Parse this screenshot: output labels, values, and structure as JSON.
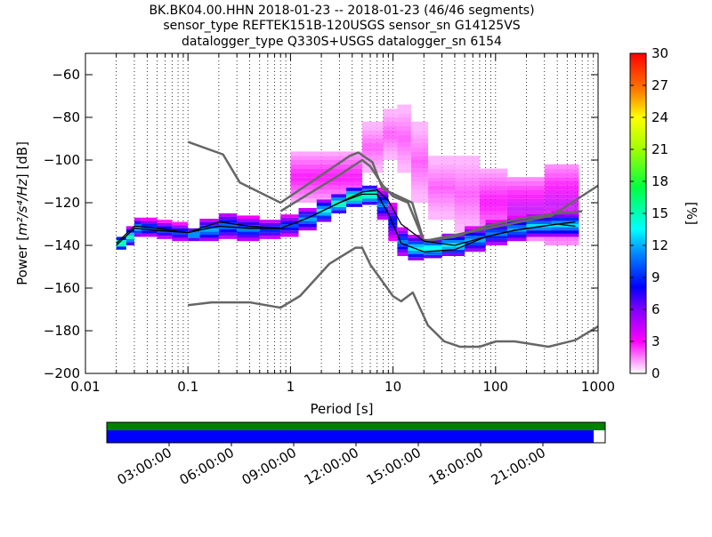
{
  "chart_data": {
    "type": "heatmap",
    "title_lines": [
      "BK.BK04.00.HHN   2018-01-23 -- 2018-01-23  (46/46 segments)",
      "sensor_type REFTEK151B-120USGS sensor_sn G14125VS",
      "datalogger_type Q330S+USGS datalogger_sn 6154"
    ],
    "xlabel": "Period [s]",
    "ylabel_text": "Power [",
    "ylabel_units": "m²/s⁴/Hz",
    "ylabel_suffix": "] [dB]",
    "xscale": "log",
    "xlim": [
      0.01,
      1000
    ],
    "ylim": [
      -200,
      -50
    ],
    "xticks": [
      0.01,
      0.1,
      1,
      10,
      100,
      1000
    ],
    "xtick_labels": [
      "0.01",
      "0.1",
      "1",
      "10",
      "100",
      "1000"
    ],
    "yticks": [
      -200,
      -180,
      -160,
      -140,
      -120,
      -100,
      -80,
      -60
    ],
    "ytick_labels": [
      "−200",
      "−180",
      "−160",
      "−140",
      "−120",
      "−100",
      "−80",
      "−60"
    ],
    "grid": "dotted vertical",
    "colorbar": {
      "label": "[%]",
      "range": [
        0,
        30
      ],
      "ticks": [
        0,
        3,
        6,
        9,
        12,
        15,
        18,
        21,
        24,
        27,
        30
      ],
      "tick_labels": [
        "0",
        "3",
        "6",
        "9",
        "12",
        "15",
        "18",
        "21",
        "24",
        "27",
        "30"
      ]
    },
    "nhnm": {
      "name": "NHNM",
      "x": [
        0.1,
        0.22,
        0.32,
        0.8,
        3.8,
        4.6,
        6.3,
        7.9,
        15.4,
        20,
        354.8,
        1000
      ],
      "y": [
        -91.5,
        -97.4,
        -110.5,
        -120,
        -98,
        -96.5,
        -101,
        -113.5,
        -120,
        -138,
        -126,
        -112
      ]
    },
    "nlnm": {
      "name": "NLNM",
      "x": [
        0.1,
        0.17,
        0.4,
        0.8,
        1.24,
        2.4,
        4.3,
        5,
        6,
        10,
        12,
        15.6,
        21.9,
        31.6,
        45,
        70,
        101,
        154,
        328,
        600,
        1000
      ],
      "y": [
        -168,
        -166.7,
        -166.7,
        -169.2,
        -163.7,
        -148.6,
        -141.1,
        -141.1,
        -149,
        -163.8,
        -166.2,
        -162.1,
        -177.5,
        -185,
        -187.5,
        -187.5,
        -185,
        -185,
        -187.5,
        -184.4,
        -178
      ]
    },
    "mode": {
      "name": "mode",
      "x": [
        0.02,
        0.03,
        0.05,
        0.1,
        0.2,
        0.4,
        0.8,
        1.5,
        3,
        5,
        7,
        9,
        12,
        20,
        40,
        80,
        150,
        400,
        600
      ],
      "y": [
        -139,
        -131,
        -132,
        -134,
        -129,
        -131,
        -132,
        -127,
        -120,
        -116,
        -116,
        -125,
        -139,
        -143,
        -142,
        -136,
        -133,
        -130,
        -131
      ]
    },
    "mean": {
      "name": "mean",
      "x": [
        0.02,
        0.03,
        0.05,
        0.1,
        0.2,
        0.4,
        0.8,
        1.5,
        3,
        5,
        7,
        9,
        12,
        20,
        40,
        80,
        150,
        400,
        600
      ],
      "y": [
        -140,
        -132,
        -133,
        -134,
        -131,
        -132,
        -132,
        -127,
        -120,
        -115,
        -114,
        -119,
        -130,
        -138,
        -140,
        -136,
        -133,
        -130,
        -129
      ]
    },
    "envelope": {
      "name": "grey-envelope",
      "x": [
        0.8,
        3,
        5,
        6,
        8,
        10,
        14,
        20,
        40,
        80,
        150,
        400,
        700
      ],
      "y": [
        -124,
        -107,
        -100,
        -103,
        -112,
        -117,
        -120,
        -138,
        -136,
        -131,
        -128,
        -125,
        -124
      ]
    },
    "density_bands": [
      {
        "x1": 0.02,
        "x2": 0.025,
        "lo": -142,
        "hi": -136,
        "pct": 16
      },
      {
        "x1": 0.025,
        "x2": 0.03,
        "lo": -140,
        "hi": -132,
        "pct": 14
      },
      {
        "x1": 0.03,
        "x2": 0.035,
        "lo": -136,
        "hi": -128,
        "pct": 12
      },
      {
        "x1": 0.035,
        "x2": 0.05,
        "lo": -136,
        "hi": -128,
        "pct": 10
      },
      {
        "x1": 0.05,
        "x2": 0.07,
        "lo": -137,
        "hi": -129,
        "pct": 9
      },
      {
        "x1": 0.07,
        "x2": 0.1,
        "lo": -138,
        "hi": -130,
        "pct": 9
      },
      {
        "x1": 0.1,
        "x2": 0.13,
        "lo": -138,
        "hi": -132,
        "pct": 12
      },
      {
        "x1": 0.13,
        "x2": 0.2,
        "lo": -138,
        "hi": -128,
        "pct": 11
      },
      {
        "x1": 0.2,
        "x2": 0.3,
        "lo": -137,
        "hi": -125,
        "pct": 10
      },
      {
        "x1": 0.3,
        "x2": 0.5,
        "lo": -138,
        "hi": -127,
        "pct": 10
      },
      {
        "x1": 0.5,
        "x2": 0.8,
        "lo": -137,
        "hi": -128,
        "pct": 9
      },
      {
        "x1": 0.8,
        "x2": 1.2,
        "lo": -136,
        "hi": -126,
        "pct": 9
      },
      {
        "x1": 1.2,
        "x2": 1.8,
        "lo": -133,
        "hi": -123,
        "pct": 11
      },
      {
        "x1": 1.8,
        "x2": 2.5,
        "lo": -129,
        "hi": -119,
        "pct": 13
      },
      {
        "x1": 2.5,
        "x2": 3.5,
        "lo": -125,
        "hi": -116,
        "pct": 15
      },
      {
        "x1": 3.5,
        "x2": 5,
        "lo": -122,
        "hi": -113,
        "pct": 16
      },
      {
        "x1": 5,
        "x2": 7,
        "lo": -121,
        "hi": -112,
        "pct": 15
      },
      {
        "x1": 7,
        "x2": 9,
        "lo": -128,
        "hi": -114,
        "pct": 10
      },
      {
        "x1": 9,
        "x2": 11,
        "lo": -138,
        "hi": -120,
        "pct": 8
      },
      {
        "x1": 11,
        "x2": 14,
        "lo": -145,
        "hi": -132,
        "pct": 10
      },
      {
        "x1": 14,
        "x2": 20,
        "lo": -147,
        "hi": -136,
        "pct": 13
      },
      {
        "x1": 20,
        "x2": 30,
        "lo": -146,
        "hi": -137,
        "pct": 14
      },
      {
        "x1": 30,
        "x2": 50,
        "lo": -145,
        "hi": -135,
        "pct": 13
      },
      {
        "x1": 50,
        "x2": 80,
        "lo": -143,
        "hi": -132,
        "pct": 11
      },
      {
        "x1": 80,
        "x2": 130,
        "lo": -140,
        "hi": -129,
        "pct": 10
      },
      {
        "x1": 130,
        "x2": 200,
        "lo": -138,
        "hi": -127,
        "pct": 11
      },
      {
        "x1": 200,
        "x2": 350,
        "lo": -136,
        "hi": -126,
        "pct": 12
      },
      {
        "x1": 350,
        "x2": 650,
        "lo": -136,
        "hi": -125,
        "pct": 12
      }
    ],
    "sparse_bands": [
      {
        "x1": 1.0,
        "x2": 5,
        "lo": -120,
        "hi": -96,
        "pct": 3
      },
      {
        "x1": 5,
        "x2": 8,
        "lo": -106,
        "hi": -82,
        "pct": 2
      },
      {
        "x1": 8,
        "x2": 11,
        "lo": -100,
        "hi": -76,
        "pct": 2
      },
      {
        "x1": 11,
        "x2": 15,
        "lo": -106,
        "hi": -74,
        "pct": 2
      },
      {
        "x1": 15,
        "x2": 22,
        "lo": -120,
        "hi": -82,
        "pct": 2
      },
      {
        "x1": 22,
        "x2": 40,
        "lo": -128,
        "hi": -98,
        "pct": 2
      },
      {
        "x1": 40,
        "x2": 70,
        "lo": -134,
        "hi": -98,
        "pct": 2
      },
      {
        "x1": 70,
        "x2": 130,
        "lo": -136,
        "hi": -104,
        "pct": 3
      },
      {
        "x1": 130,
        "x2": 300,
        "lo": -138,
        "hi": -108,
        "pct": 4
      },
      {
        "x1": 300,
        "x2": 650,
        "lo": -140,
        "hi": -102,
        "pct": 4
      }
    ]
  },
  "timeline": {
    "tick_labels": [
      "03:00:00",
      "06:00:00",
      "09:00:00",
      "12:00:00",
      "15:00:00",
      "18:00:00",
      "21:00:00"
    ],
    "coverage_fraction": 0.977
  }
}
